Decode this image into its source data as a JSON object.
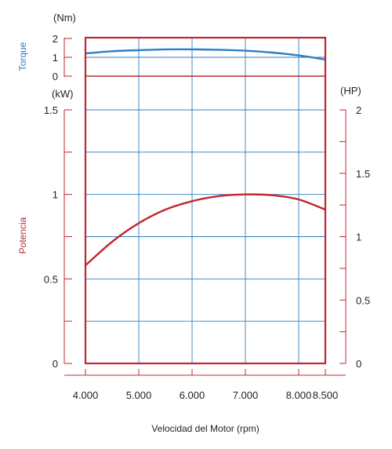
{
  "chart_data": {
    "type": "line",
    "xlabel": "Velocidad del Motor (rpm)",
    "x_ticks": [
      4000,
      5000,
      6000,
      7000,
      8000,
      8500
    ],
    "x_tick_labels": [
      "4.000",
      "5.000",
      "6.000",
      "7.000",
      "8.000",
      "8.500"
    ],
    "xlim": [
      4000,
      8500
    ],
    "torque_axis": {
      "title": "Torque",
      "unit": "(Nm)",
      "ticks": [
        0,
        1,
        2
      ],
      "tick_labels": [
        "0",
        "1",
        "2"
      ],
      "ylim": [
        0,
        2
      ]
    },
    "power_axis": {
      "title": "Potencia",
      "unit": "(kW)",
      "ticks": [
        0,
        0.5,
        1,
        1.5
      ],
      "tick_labels": [
        "0",
        "0.5",
        "1",
        "1.5"
      ],
      "ylim": [
        0,
        1.95
      ]
    },
    "hp_axis": {
      "unit": "(HP)",
      "ticks": [
        0,
        0.5,
        1,
        1.5,
        2
      ],
      "tick_labels": [
        "0",
        "0.5",
        "1",
        "1.5",
        "2"
      ],
      "ylim": [
        0,
        2.6
      ]
    },
    "series": [
      {
        "name": "Torque",
        "color": "#2f7ec4",
        "axis": "torque",
        "x": [
          4000,
          4500,
          5000,
          5500,
          6000,
          6500,
          7000,
          7500,
          8000,
          8500
        ],
        "values": [
          1.21,
          1.32,
          1.38,
          1.42,
          1.42,
          1.4,
          1.35,
          1.25,
          1.1,
          0.88
        ]
      },
      {
        "name": "Potencia",
        "color": "#c1272d",
        "axis": "power",
        "x": [
          4000,
          4500,
          5000,
          5500,
          6000,
          6500,
          7000,
          7500,
          8000,
          8500
        ],
        "values": [
          0.58,
          0.72,
          0.83,
          0.91,
          0.96,
          0.99,
          1.0,
          0.995,
          0.97,
          0.91
        ]
      }
    ],
    "colors": {
      "frame": "#c1272d",
      "grid": "#2f7ec4",
      "torque": "#2f7ec4",
      "potencia": "#c1272d"
    }
  }
}
